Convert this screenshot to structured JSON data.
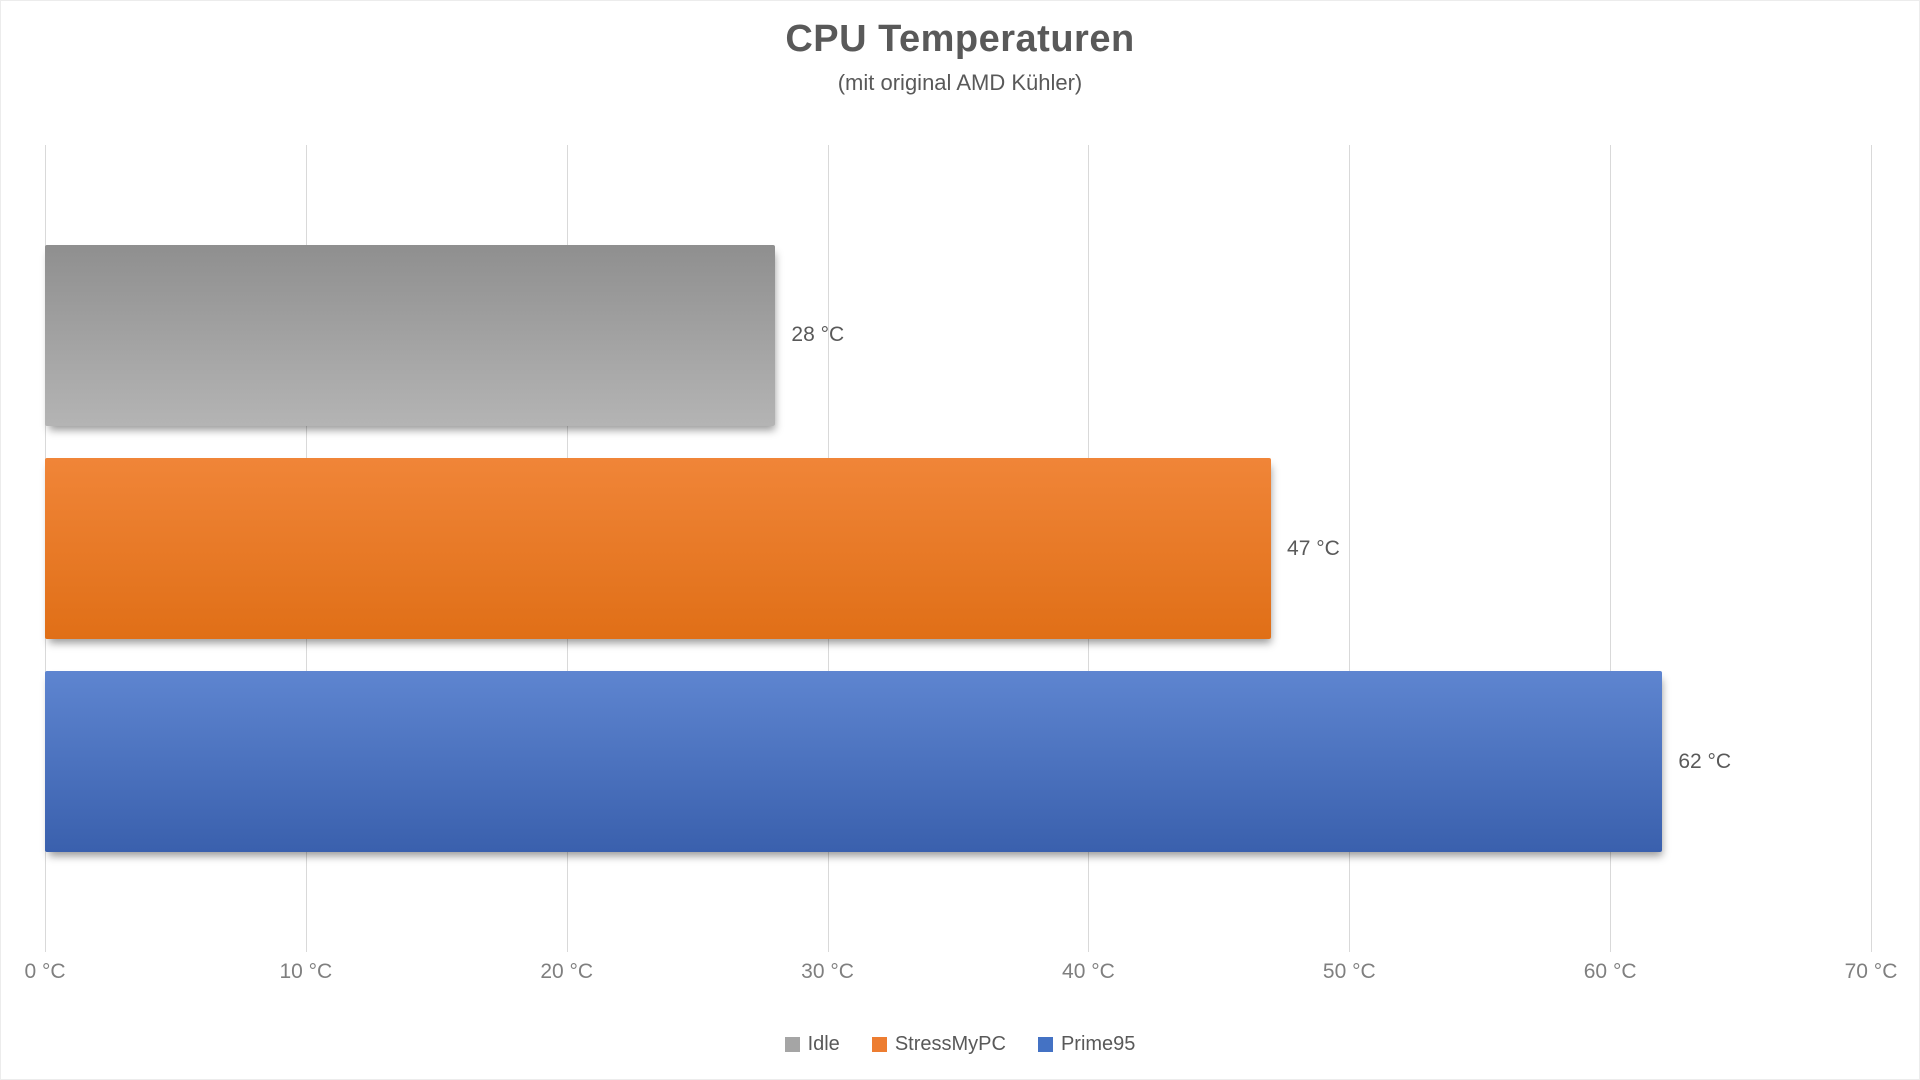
{
  "chart_data": {
    "type": "bar",
    "orientation": "horizontal",
    "title": "CPU Temperaturen",
    "subtitle": "(mit original AMD Kühler)",
    "categories": [
      "Idle",
      "StressMyPC",
      "Prime95"
    ],
    "values": [
      28,
      47,
      62
    ],
    "value_labels": [
      "28 °C",
      "47 °C",
      "62 °C"
    ],
    "unit": "°C",
    "xlim": [
      0,
      70
    ],
    "x_ticks": [
      0,
      10,
      20,
      30,
      40,
      50,
      60,
      70
    ],
    "x_tick_labels": [
      "0 °C",
      "10 °C",
      "20 °C",
      "30 °C",
      "40 °C",
      "50 °C",
      "60 °C",
      "70 °C"
    ],
    "grid": true,
    "gridline_color": "#d9d9d9",
    "legend_position": "bottom",
    "legend": [
      "Idle",
      "StressMyPC",
      "Prime95"
    ],
    "series_colors": [
      {
        "name": "Idle",
        "color": "#a5a5a5",
        "gradient_top": "#8f8f8f",
        "gradient_bottom": "#b4b4b4"
      },
      {
        "name": "StressMyPC",
        "color": "#ed7d31",
        "gradient_top": "#f08538",
        "gradient_bottom": "#e06f17"
      },
      {
        "name": "Prime95",
        "color": "#4472c4",
        "gradient_top": "#5e85d0",
        "gradient_bottom": "#3a60ad"
      }
    ],
    "text_colors": {
      "title": "#595959",
      "tick_labels": "#7f7f7f",
      "value_labels": "#595959",
      "legend_labels": "#595959"
    }
  }
}
